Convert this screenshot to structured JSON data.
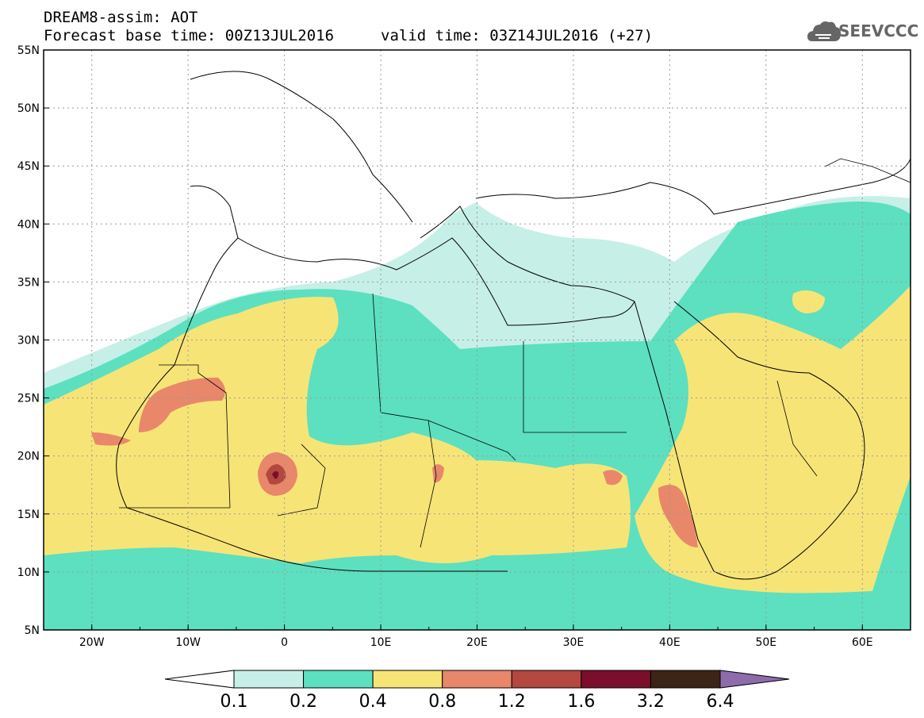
{
  "header": {
    "title": "DREAM8-assim: AOT",
    "base_time": "Forecast base time: 00Z13JUL2016",
    "valid_time": "valid time: 03Z14JUL2016 (+27)"
  },
  "logo": {
    "text": "SEEVCCC",
    "icon": "cloud-icon"
  },
  "map": {
    "lon_range": [
      -25,
      65
    ],
    "lat_range": [
      5,
      55
    ],
    "lat_ticks": [
      "5N",
      "10N",
      "15N",
      "20N",
      "25N",
      "30N",
      "35N",
      "40N",
      "45N",
      "50N",
      "55N"
    ],
    "lon_ticks": [
      "20W",
      "10W",
      "0",
      "10E",
      "20E",
      "30E",
      "40E",
      "50E",
      "60E"
    ]
  },
  "colorbar": {
    "labels": [
      "0.1",
      "0.2",
      "0.4",
      "0.8",
      "1.2",
      "1.6",
      "3.2",
      "6.4"
    ],
    "colors": [
      "#ffffff",
      "#c6efe8",
      "#5ce0c0",
      "#f7e477",
      "#e8876a",
      "#b3483f",
      "#7b0f2b",
      "#3c2416",
      "#8e6cac"
    ]
  },
  "legend_colors": {
    "ocean": "#ffffff",
    "c1": "#c6efe8",
    "c2": "#5ce0c0",
    "c3": "#f7e477",
    "c4": "#e8876a",
    "c5": "#b3483f",
    "c6": "#7b0f2b"
  }
}
